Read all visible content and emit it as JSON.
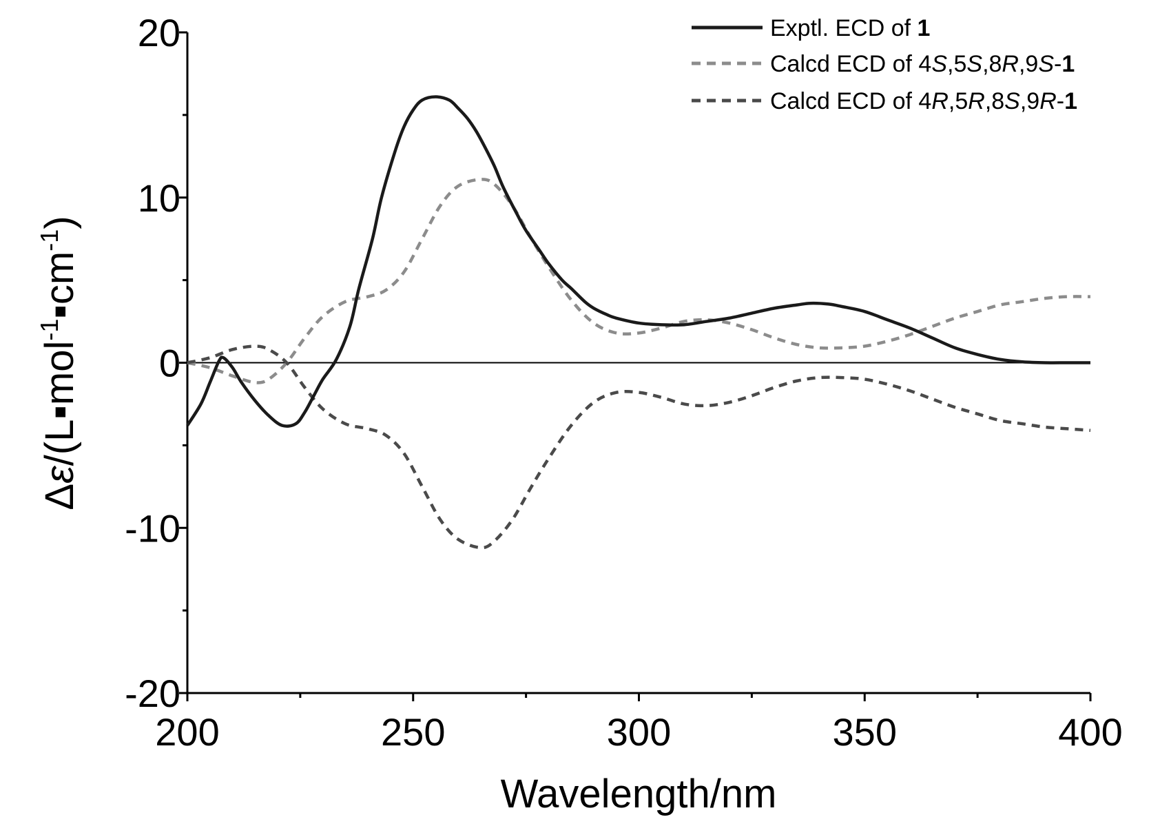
{
  "chart_data": {
    "type": "line",
    "title": "",
    "xlabel": "Wavelength/nm",
    "ylabel_parts": [
      "Δ",
      "ε",
      "/(L▪mol",
      "-1",
      "▪cm",
      "-1",
      ")"
    ],
    "xlim": [
      200,
      400
    ],
    "ylim": [
      -20,
      20
    ],
    "xticks": [
      200,
      250,
      300,
      350,
      400
    ],
    "xtick_labels": [
      "200",
      "250",
      "300",
      "350",
      "400"
    ],
    "yticks": [
      20,
      10,
      0,
      -10,
      -20
    ],
    "ytick_labels": [
      "20",
      "10",
      "0",
      "-10",
      "-20"
    ],
    "grid": false,
    "legend_position": "top-right",
    "series": [
      {
        "name": "Exptl. ECD of 1",
        "legend_parts": [
          [
            "Exptl. ECD of ",
            "n"
          ],
          [
            "1",
            "b"
          ]
        ],
        "style": "solid",
        "color": "#1a1a1a",
        "x": [
          200,
          203,
          205,
          207,
          208,
          210,
          212,
          215,
          218,
          221,
          224,
          226,
          228,
          230,
          233,
          236,
          238,
          241,
          243,
          246,
          248,
          250,
          252,
          255,
          258,
          260,
          262,
          264,
          266,
          268,
          270,
          273,
          275,
          278,
          280,
          283,
          285,
          288,
          290,
          293,
          295,
          300,
          305,
          310,
          315,
          320,
          325,
          330,
          335,
          338,
          342,
          345,
          350,
          355,
          360,
          365,
          370,
          375,
          380,
          385,
          390,
          395,
          400
        ],
        "y": [
          -3.8,
          -2.5,
          -1.2,
          0.1,
          0.3,
          -0.3,
          -1.2,
          -2.3,
          -3.2,
          -3.8,
          -3.7,
          -3,
          -2,
          -1,
          0.2,
          2.2,
          4.5,
          7.5,
          10,
          12.8,
          14.3,
          15.3,
          15.9,
          16.1,
          15.9,
          15.4,
          14.8,
          14,
          13,
          11.9,
          10.6,
          9,
          8,
          6.8,
          6,
          5,
          4.5,
          3.7,
          3.3,
          2.9,
          2.7,
          2.4,
          2.3,
          2.3,
          2.5,
          2.7,
          3.0,
          3.3,
          3.5,
          3.6,
          3.55,
          3.4,
          3.1,
          2.6,
          2.1,
          1.5,
          0.9,
          0.5,
          0.2,
          0.05,
          0,
          0,
          0
        ]
      },
      {
        "name": "Calcd ECD of 4S,5S,8R,9S-1",
        "legend_parts": [
          [
            "Calcd ECD of 4",
            "n"
          ],
          [
            "S",
            "i"
          ],
          [
            ",5",
            "n"
          ],
          [
            "S",
            "i"
          ],
          [
            ",8",
            "n"
          ],
          [
            "R",
            "i"
          ],
          [
            ",9",
            "n"
          ],
          [
            "S",
            "i"
          ],
          [
            "-",
            "n"
          ],
          [
            "1",
            "b"
          ]
        ],
        "style": "dashed",
        "color": "#8c8c8c",
        "x": [
          200,
          205,
          210,
          215,
          218,
          222,
          226,
          230,
          235,
          240,
          244,
          248,
          252,
          256,
          260,
          265,
          268,
          272,
          276,
          280,
          285,
          290,
          295,
          300,
          305,
          310,
          315,
          320,
          325,
          330,
          335,
          340,
          345,
          350,
          355,
          360,
          365,
          370,
          375,
          380,
          385,
          390,
          395,
          400
        ],
        "y": [
          0,
          -0.3,
          -0.8,
          -1.2,
          -1,
          0,
          1.5,
          2.8,
          3.7,
          4,
          4.4,
          5.5,
          7.5,
          9.5,
          10.7,
          11.1,
          10.8,
          9.5,
          7.6,
          5.8,
          3.8,
          2.4,
          1.8,
          1.8,
          2.1,
          2.5,
          2.6,
          2.4,
          2.0,
          1.5,
          1.1,
          0.9,
          0.9,
          1.0,
          1.3,
          1.7,
          2.2,
          2.7,
          3.1,
          3.5,
          3.7,
          3.9,
          4,
          4
        ]
      },
      {
        "name": "Calcd ECD of 4R,5R,8S,9R-1",
        "legend_parts": [
          [
            "Calcd ECD of 4",
            "n"
          ],
          [
            "R",
            "i"
          ],
          [
            ",5",
            "n"
          ],
          [
            "R",
            "i"
          ],
          [
            ",8",
            "n"
          ],
          [
            "S",
            "i"
          ],
          [
            ",9",
            "n"
          ],
          [
            "R",
            "i"
          ],
          [
            "-",
            "n"
          ],
          [
            "1",
            "b"
          ]
        ],
        "style": "dashed",
        "color": "#4a4a4a",
        "x": [
          200,
          205,
          210,
          215,
          218,
          222,
          226,
          230,
          235,
          240,
          244,
          248,
          252,
          256,
          260,
          265,
          268,
          272,
          276,
          280,
          285,
          290,
          295,
          300,
          305,
          310,
          315,
          320,
          325,
          330,
          335,
          340,
          345,
          350,
          355,
          360,
          365,
          370,
          375,
          380,
          385,
          390,
          395,
          400
        ],
        "y": [
          0,
          0.3,
          0.8,
          1.0,
          0.8,
          0,
          -1.5,
          -2.8,
          -3.7,
          -4,
          -4.4,
          -5.5,
          -7.5,
          -9.5,
          -10.7,
          -11.2,
          -10.8,
          -9.5,
          -7.6,
          -5.8,
          -3.8,
          -2.4,
          -1.8,
          -1.8,
          -2.1,
          -2.5,
          -2.6,
          -2.4,
          -2.0,
          -1.5,
          -1.1,
          -0.9,
          -0.9,
          -1.0,
          -1.3,
          -1.7,
          -2.2,
          -2.7,
          -3.1,
          -3.5,
          -3.7,
          -3.9,
          -4,
          -4.1
        ]
      }
    ]
  }
}
